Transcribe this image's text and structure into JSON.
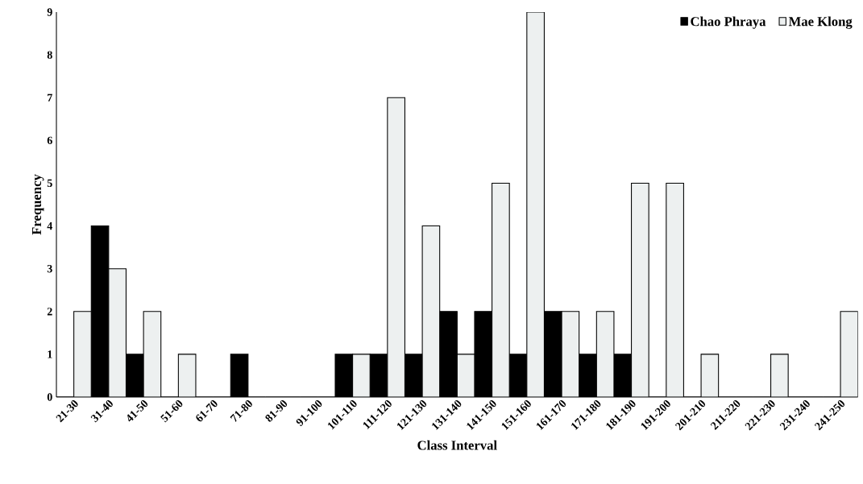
{
  "chart_data": {
    "type": "bar",
    "xlabel": "Class Interval",
    "ylabel": "Frequency",
    "categories": [
      "21-30",
      "31-40",
      "41-50",
      "51-60",
      "61-70",
      "71-80",
      "81-90",
      "91-100",
      "101-110",
      "111-120",
      "121-130",
      "131-140",
      "141-150",
      "151-160",
      "161-170",
      "171-180",
      "181-190",
      "191-200",
      "201-210",
      "211-220",
      "221-230",
      "231-240",
      "241-250"
    ],
    "series": [
      {
        "name": "Chao Phraya",
        "color": "#000000",
        "values": [
          0,
          4,
          1,
          0,
          0,
          1,
          0,
          0,
          1,
          1,
          1,
          2,
          2,
          1,
          2,
          1,
          1,
          0,
          0,
          0,
          0,
          0,
          0
        ]
      },
      {
        "name": "Mae Klong",
        "color": "#edf0f0",
        "values": [
          2,
          3,
          2,
          1,
          0,
          0,
          0,
          0,
          1,
          7,
          4,
          1,
          5,
          9,
          2,
          2,
          5,
          5,
          1,
          0,
          1,
          0,
          2
        ]
      }
    ],
    "ylim": [
      0,
      9
    ],
    "yticks": [
      0,
      1,
      2,
      3,
      4,
      5,
      6,
      7,
      8,
      9
    ],
    "legend": "top right"
  }
}
